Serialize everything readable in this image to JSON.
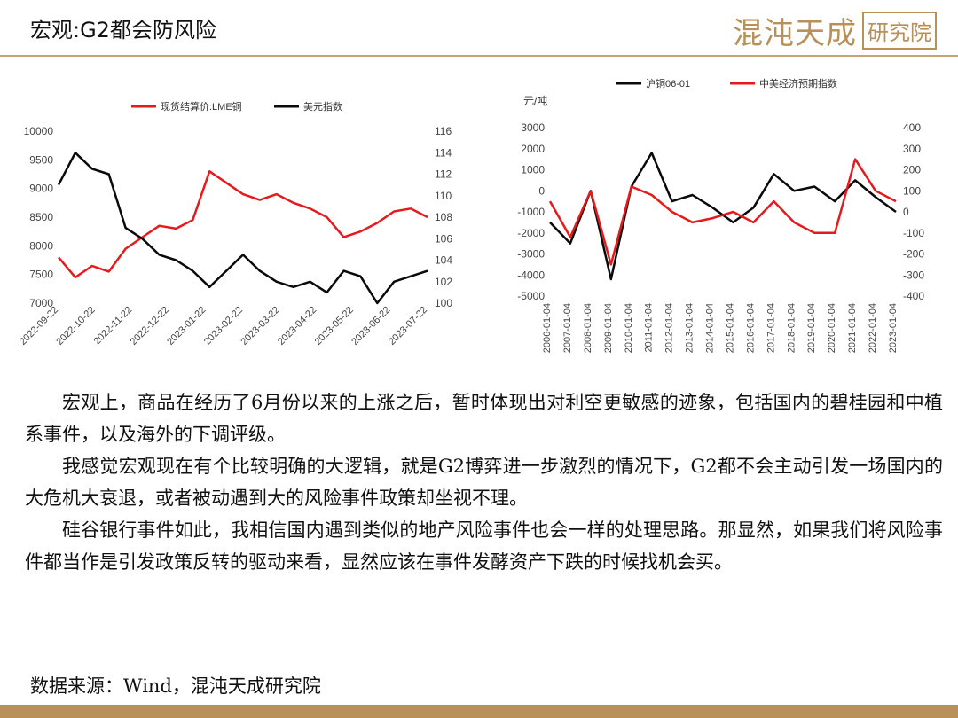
{
  "header": {
    "title": "宏观:G2都会防风险",
    "logo_text": "混沌天成",
    "logo_seal": "研究院"
  },
  "colors": {
    "red": "#e8191c",
    "black": "#0a0a0a",
    "gold": "#b8905a"
  },
  "body": {
    "paragraphs": [
      "宏观上，商品在经历了6月份以来的上涨之后，暂时体现出对利空更敏感的迹象，包括国内的碧桂园和中植系事件，以及海外的下调评级。",
      "我感觉宏观现在有个比较明确的大逻辑，就是G2博弈进一步激烈的情况下，G2都不会主动引发一场国内的大危机大衰退，或者被动遇到大的风险事件政策却坐视不理。",
      "硅谷银行事件如此，我相信国内遇到类似的地产风险事件也会一样的处理思路。那显然，如果我们将风险事件都当作是引发政策反转的驱动来看，显然应该在事件发酵资产下跌的时候找机会买。"
    ],
    "source": "数据来源：Wind，混沌天成研究院"
  },
  "chart_data": [
    {
      "type": "line",
      "legend_position": "top",
      "x_tick_labels": [
        "2022-09-22",
        "2022-10-22",
        "2022-11-22",
        "2022-12-22",
        "2023-01-22",
        "2023-02-22",
        "2023-03-22",
        "2023-04-22",
        "2023-05-22",
        "2023-06-22",
        "2023-07-22"
      ],
      "x": [
        "2022-09-22",
        "2022-10-07",
        "2022-10-22",
        "2022-11-07",
        "2022-11-22",
        "2022-12-07",
        "2022-12-22",
        "2023-01-07",
        "2023-01-22",
        "2023-02-07",
        "2023-02-22",
        "2023-03-07",
        "2023-03-22",
        "2023-04-07",
        "2023-04-22",
        "2023-05-07",
        "2023-05-22",
        "2023-06-07",
        "2023-06-22",
        "2023-07-07",
        "2023-07-22",
        "2023-08-07",
        "2023-08-18"
      ],
      "yleft_ticks": [
        "7000",
        "7500",
        "8000",
        "8500",
        "9000",
        "9500",
        "10000"
      ],
      "yleft_lim": [
        7000,
        10000
      ],
      "yright_ticks": [
        "100",
        "102",
        "104",
        "106",
        "108",
        "110",
        "112",
        "114",
        "116"
      ],
      "yright_lim": [
        100,
        116
      ],
      "series": [
        {
          "name": "现货结算价:LME铜",
          "axis": "left",
          "color": "#e8191c",
          "values": [
            7800,
            7450,
            7650,
            7550,
            7950,
            8150,
            8350,
            8300,
            8450,
            9300,
            9100,
            8900,
            8800,
            8900,
            8750,
            8650,
            8500,
            8150,
            8250,
            8400,
            8600,
            8650,
            8500
          ]
        },
        {
          "name": "美元指数",
          "axis": "right",
          "color": "#0a0a0a",
          "values": [
            111,
            114,
            112.5,
            112,
            107,
            106,
            104.5,
            104,
            103,
            101.5,
            103,
            104.5,
            103,
            102,
            101.5,
            102,
            101,
            103,
            102.5,
            100,
            102,
            102.5,
            103
          ]
        }
      ]
    },
    {
      "type": "line",
      "legend_position": "top",
      "yleft_label": "元/吨",
      "x_tick_labels": [
        "2006-01-04",
        "2007-01-04",
        "2008-01-04",
        "2009-01-04",
        "2010-01-04",
        "2011-01-04",
        "2012-01-04",
        "2013-01-04",
        "2014-01-04",
        "2015-01-04",
        "2016-01-04",
        "2017-01-04",
        "2018-01-04",
        "2019-01-04",
        "2020-01-04",
        "2021-01-04",
        "2022-01-04",
        "2023-01-04"
      ],
      "x": [
        2006,
        2007,
        2008,
        2009,
        2010,
        2011,
        2012,
        2013,
        2014,
        2015,
        2016,
        2017,
        2018,
        2019,
        2020,
        2021,
        2022,
        2023
      ],
      "yleft_ticks": [
        "-5000",
        "-4000",
        "-3000",
        "-2000",
        "-1000",
        "0",
        "1000",
        "2000",
        "3000"
      ],
      "yleft_lim": [
        -5000,
        3000
      ],
      "yright_ticks": [
        "-400",
        "-300",
        "-200",
        "-100",
        "0",
        "100",
        "200",
        "300",
        "400"
      ],
      "yright_lim": [
        -400,
        400
      ],
      "series": [
        {
          "name": "沪铜06-01",
          "axis": "left",
          "color": "#0a0a0a",
          "values": [
            -1500,
            -2500,
            0,
            -4200,
            200,
            1800,
            -500,
            -200,
            -800,
            -1500,
            -800,
            800,
            0,
            200,
            -500,
            500,
            -300,
            -1000
          ]
        },
        {
          "name": "中美经济预期指数",
          "axis": "right",
          "color": "#e8191c",
          "values": [
            50,
            -120,
            100,
            -250,
            120,
            80,
            0,
            -50,
            -30,
            0,
            -50,
            50,
            -50,
            -100,
            -100,
            250,
            100,
            50
          ]
        }
      ]
    }
  ]
}
